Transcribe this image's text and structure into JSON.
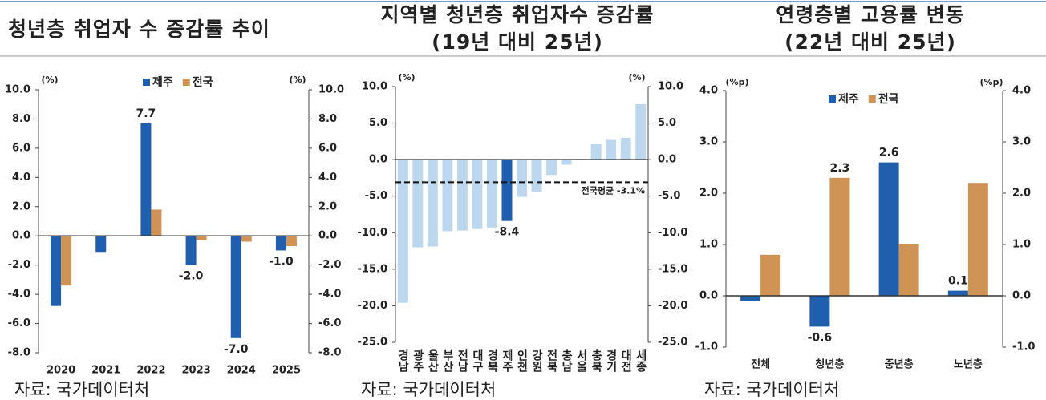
{
  "chart_data": [
    {
      "type": "bar",
      "title": "청년층 취업자 수 증감률 추이",
      "categories": [
        "2020",
        "2021",
        "2022",
        "2023",
        "2024",
        "2025"
      ],
      "series": [
        {
          "name": "제주",
          "color": "#1f5fad",
          "values": [
            -4.8,
            -1.1,
            7.7,
            -2.0,
            -7.0,
            -1.0
          ],
          "value_labels": [
            null,
            null,
            "7.7",
            "-2.0",
            "-7.0",
            "-1.0"
          ]
        },
        {
          "name": "전국",
          "color": "#d09356",
          "values": [
            -3.4,
            0,
            1.8,
            -0.3,
            -0.4,
            -0.7
          ]
        }
      ],
      "y_unit": "(%)",
      "y2_unit": "(%)",
      "ylim": [
        -8,
        10
      ],
      "yticks": [
        {
          "value": -8,
          "label": "-8.0"
        },
        {
          "value": -6,
          "label": "-6.0"
        },
        {
          "value": -4,
          "label": "-4.0"
        },
        {
          "value": -2,
          "label": "-2.0"
        },
        {
          "value": 0,
          "label": "0.0"
        },
        {
          "value": 2,
          "label": "2.0"
        },
        {
          "value": 4,
          "label": "4.0"
        },
        {
          "value": 6,
          "label": "6.0"
        },
        {
          "value": 8,
          "label": "8.0"
        },
        {
          "value": 10,
          "label": "10.0"
        }
      ],
      "y2lim": [
        -8,
        10
      ],
      "y2ticks": [
        {
          "value": -8,
          "label": "-8.0"
        },
        {
          "value": -6,
          "label": "-6.0"
        },
        {
          "value": -4,
          "label": "-4.0"
        },
        {
          "value": -2,
          "label": "-2.0"
        },
        {
          "value": 0,
          "label": "0.0"
        },
        {
          "value": 2,
          "label": "2.0"
        },
        {
          "value": 4,
          "label": "4.0"
        },
        {
          "value": 6,
          "label": "6.0"
        },
        {
          "value": 8,
          "label": "8.0"
        },
        {
          "value": 10,
          "label": "10.0"
        }
      ],
      "source": "자료: 국가데이터처"
    },
    {
      "type": "bar",
      "title": "지역별 청년층 취업자수 증감률",
      "subtitle": "(19년 대비 25년)",
      "categories": [
        "경남",
        "광주",
        "울산",
        "부산",
        "전남",
        "대구",
        "경북",
        "제주",
        "인천",
        "강원",
        "전북",
        "충남",
        "서울",
        "충북",
        "경기",
        "대전",
        "세종"
      ],
      "values": [
        -19.6,
        -12.0,
        -11.9,
        -9.8,
        -9.7,
        -9.5,
        -9.3,
        -8.4,
        -5.1,
        -4.4,
        -2.1,
        -0.7,
        0.1,
        2.1,
        2.7,
        3.0,
        7.6
      ],
      "value_labels": [
        null,
        null,
        null,
        null,
        null,
        null,
        null,
        "-8.4",
        null,
        null,
        null,
        null,
        null,
        null,
        null,
        null,
        null
      ],
      "colors": [
        "#bdd7ee",
        "#bdd7ee",
        "#bdd7ee",
        "#bdd7ee",
        "#bdd7ee",
        "#bdd7ee",
        "#bdd7ee",
        "#1f5fad",
        "#bdd7ee",
        "#bdd7ee",
        "#bdd7ee",
        "#bdd7ee",
        "#bdd7ee",
        "#bdd7ee",
        "#bdd7ee",
        "#bdd7ee",
        "#bdd7ee"
      ],
      "reference_line": {
        "value": -3.1,
        "label": "전국평균 -3.1%"
      },
      "y_unit": "(%)",
      "y2_unit": "(%)",
      "ylim": [
        -25,
        10
      ],
      "yticks": [
        {
          "value": -25,
          "label": "-25.0"
        },
        {
          "value": -20,
          "label": "-20.0"
        },
        {
          "value": -15,
          "label": "-15.0"
        },
        {
          "value": -10,
          "label": "-10.0"
        },
        {
          "value": -5,
          "label": "-5.0"
        },
        {
          "value": 0,
          "label": "0.0"
        },
        {
          "value": 5,
          "label": "5.0"
        },
        {
          "value": 10,
          "label": "10.0"
        }
      ],
      "y2lim": [
        -25,
        10
      ],
      "y2ticks": [
        {
          "value": -25,
          "label": "-25.0"
        },
        {
          "value": -20,
          "label": "-20.0"
        },
        {
          "value": -15,
          "label": "-15.0"
        },
        {
          "value": -10,
          "label": "-10.0"
        },
        {
          "value": -5,
          "label": "-5.0"
        },
        {
          "value": 0,
          "label": "0.0"
        },
        {
          "value": 5,
          "label": "5.0"
        },
        {
          "value": 10,
          "label": "10.0"
        }
      ],
      "source": "자료: 국가데이터처"
    },
    {
      "type": "bar",
      "title": "연령층별 고용률 변동",
      "subtitle": "(22년 대비 25년)",
      "categories": [
        "전체",
        "청년층",
        "중년층",
        "노년층"
      ],
      "series": [
        {
          "name": "제주",
          "color": "#1f5fad",
          "values": [
            -0.1,
            -0.6,
            2.6,
            0.1
          ],
          "value_labels": [
            null,
            "-0.6",
            "2.6",
            "0.1"
          ]
        },
        {
          "name": "전국",
          "color": "#d09356",
          "values": [
            0.8,
            2.3,
            1.0,
            2.2
          ],
          "value_labels": [
            null,
            "2.3",
            null,
            null
          ]
        }
      ],
      "y_unit": "(%p)",
      "y2_unit": "(%p)",
      "ylim": [
        -1,
        4
      ],
      "yticks": [
        {
          "value": -1,
          "label": "-1.0"
        },
        {
          "value": 0,
          "label": "0.0"
        },
        {
          "value": 1,
          "label": "1.0"
        },
        {
          "value": 2,
          "label": "2.0"
        },
        {
          "value": 3,
          "label": "3.0"
        },
        {
          "value": 4,
          "label": "4.0"
        }
      ],
      "y2lim": [
        -1,
        4
      ],
      "y2ticks": [
        {
          "value": -1,
          "label": "-1.0"
        },
        {
          "value": 0,
          "label": "0.0"
        },
        {
          "value": 1,
          "label": "1.0"
        },
        {
          "value": 2,
          "label": "2.0"
        },
        {
          "value": 3,
          "label": "3.0"
        },
        {
          "value": 4,
          "label": "4.0"
        }
      ],
      "source": "자료: 국가데이터처"
    }
  ]
}
